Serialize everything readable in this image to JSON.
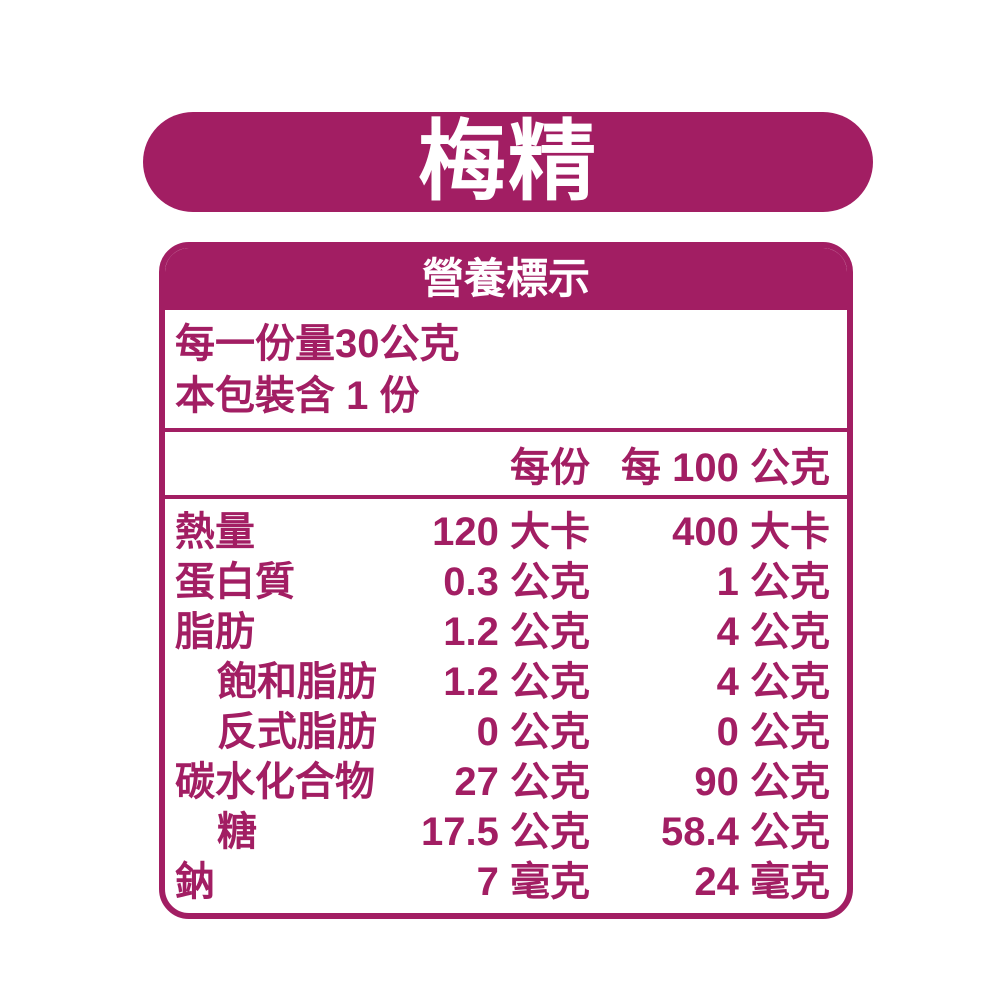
{
  "colors": {
    "magenta": "#A21E63",
    "white": "#ffffff"
  },
  "banner": {
    "title": "梅精"
  },
  "label": {
    "title": "營養標示",
    "serving_size": "每一份量30公克",
    "servings_per_package": "本包裝含 1 份",
    "columns": {
      "per_serving": "每份",
      "per_100g": "每 100 公克"
    },
    "rows": [
      {
        "name": "熱量",
        "indent": false,
        "per_serving": "120 大卡",
        "per_100g": "400 大卡"
      },
      {
        "name": "蛋白質",
        "indent": false,
        "per_serving": "0.3 公克",
        "per_100g": "1 公克"
      },
      {
        "name": "脂肪",
        "indent": false,
        "per_serving": "1.2 公克",
        "per_100g": "4 公克"
      },
      {
        "name": "飽和脂肪",
        "indent": true,
        "per_serving": "1.2 公克",
        "per_100g": "4 公克"
      },
      {
        "name": "反式脂肪",
        "indent": true,
        "per_serving": "0 公克",
        "per_100g": "0 公克"
      },
      {
        "name": "碳水化合物",
        "indent": false,
        "per_serving": "27 公克",
        "per_100g": "90 公克"
      },
      {
        "name": "糖",
        "indent": true,
        "per_serving": "17.5 公克",
        "per_100g": "58.4 公克"
      },
      {
        "name": "鈉",
        "indent": false,
        "per_serving": "7 毫克",
        "per_100g": "24 毫克"
      }
    ]
  }
}
